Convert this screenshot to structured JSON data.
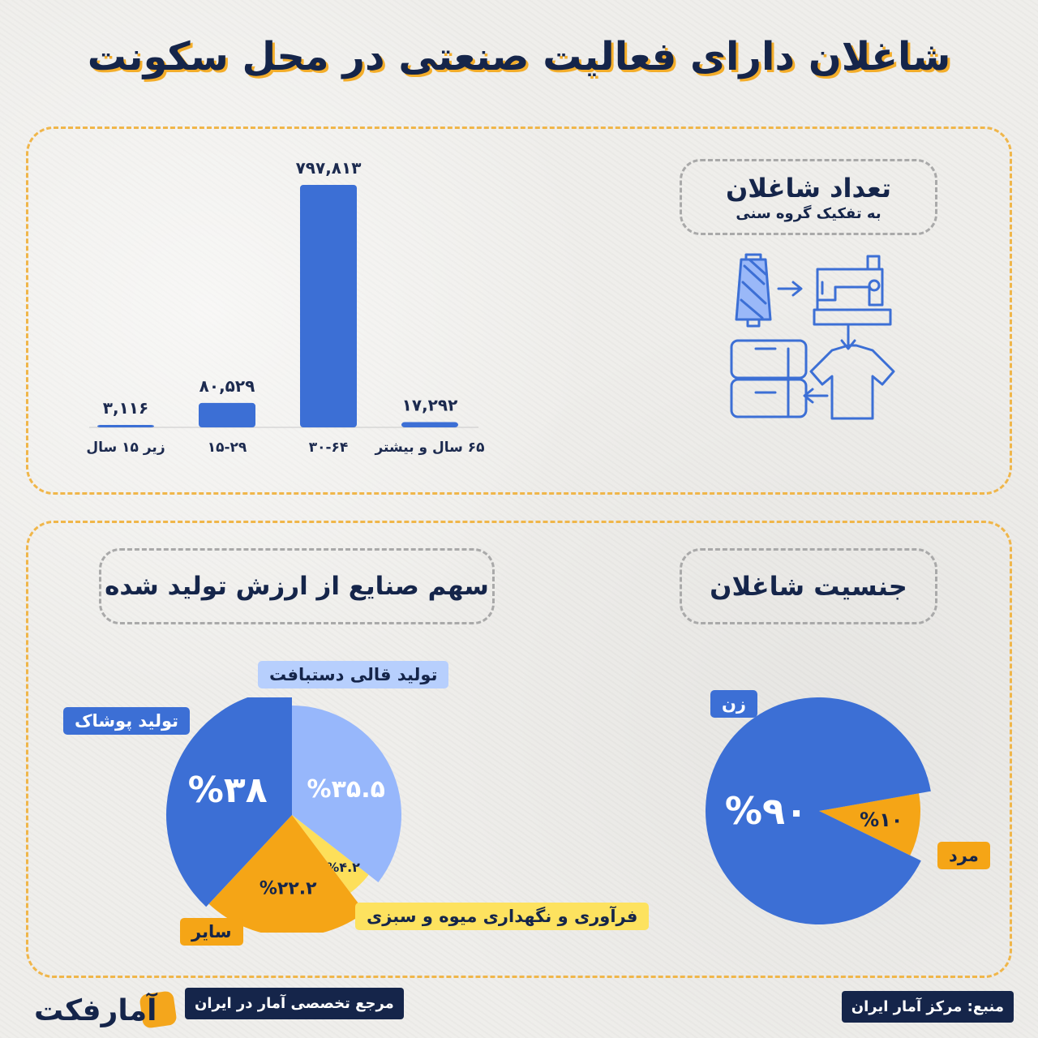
{
  "title": "شاغلان دارای فعالیت صنعتی در محل سکونت",
  "age_section": {
    "heading": "تعداد شاغلان",
    "subheading": "به تفکیک گروه سنی",
    "icon": "textile-production-icon"
  },
  "gender_section": {
    "heading": "جنسیت شاغلان"
  },
  "share_section": {
    "heading": "سهم صنایع از ارزش تولید شده"
  },
  "chart_data": [
    {
      "type": "bar",
      "categories": [
        "زیر ۱۵ سال",
        "۱۵-۲۹",
        "۳۰-۶۴",
        "۶۵ سال و بیشتر"
      ],
      "values": [
        3116,
        80529,
        797813,
        17292
      ],
      "value_labels": [
        "۳,۱۱۶",
        "۸۰,۵۲۹",
        "۷۹۷,۸۱۳",
        "۱۷,۲۹۲"
      ],
      "color": "#3c6fd5"
    },
    {
      "type": "pie",
      "slices": [
        {
          "label": "تولید قالی دستبافت",
          "value": 35.5,
          "value_label": "%۳۵.۵",
          "color": "#97b7fb"
        },
        {
          "label": "فرآوری و نگهداری میوه و سبزی",
          "value": 4.2,
          "value_label": "%۴.۲",
          "color": "#fddf5a"
        },
        {
          "label": "سایر",
          "value": 22.2,
          "value_label": "%۲۲.۲",
          "color": "#f5a516"
        },
        {
          "label": "تولید پوشاک",
          "value": 38,
          "value_label": "%۳۸",
          "color": "#3c6fd5"
        }
      ]
    },
    {
      "type": "pie",
      "slices": [
        {
          "label": "زن",
          "value": 90,
          "value_label": "%۹۰",
          "color": "#3c6fd5"
        },
        {
          "label": "مرد",
          "value": 10,
          "value_label": "%۱۰",
          "color": "#f5a516"
        }
      ]
    }
  ],
  "footer": {
    "source": "منبع: مرکز آمار ایران",
    "tagline": "مرجع تخصصی آمار در ایران",
    "logo": "آمارفکت"
  }
}
